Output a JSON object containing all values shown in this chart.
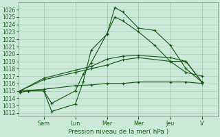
{
  "xlabel": "Pression niveau de la mer( hPa )",
  "bg_color": "#cce8d8",
  "line_color": "#1a5c1a",
  "grid_color": "#aaccb8",
  "ylim": [
    1011.5,
    1027.0
  ],
  "yticks": [
    1012,
    1013,
    1014,
    1015,
    1016,
    1017,
    1018,
    1019,
    1020,
    1021,
    1022,
    1023,
    1024,
    1025,
    1026
  ],
  "x_day_labels": [
    "Sam",
    "Lun",
    "Mar",
    "Mer",
    "Jeu",
    "V"
  ],
  "x_day_positions": [
    0.333,
    0.5,
    0.667,
    0.833,
    1.0,
    1.167
  ],
  "xlim": [
    0.2,
    1.25
  ],
  "lines": [
    {
      "x": [
        0.208,
        0.25,
        0.333,
        0.375,
        0.5,
        0.542,
        0.583,
        0.667,
        0.708,
        0.75,
        0.833,
        0.917,
        1.0,
        1.083,
        1.167
      ],
      "y": [
        1014.8,
        1015.0,
        1015.0,
        1012.2,
        1013.2,
        1016.3,
        1020.5,
        1022.7,
        1026.3,
        1025.7,
        1023.5,
        1023.2,
        1021.2,
        1018.0,
        1016.2
      ],
      "marker": "+"
    },
    {
      "x": [
        0.208,
        0.25,
        0.333,
        0.375,
        0.5,
        0.542,
        0.583,
        0.667,
        0.708,
        0.75,
        0.833,
        0.917,
        1.0,
        1.083,
        1.167
      ],
      "y": [
        1014.8,
        1015.0,
        1015.0,
        1013.3,
        1015.0,
        1017.3,
        1018.8,
        1022.8,
        1025.0,
        1024.5,
        1023.0,
        1021.2,
        1019.0,
        1017.5,
        1017.0
      ],
      "marker": "+"
    },
    {
      "x": [
        0.208,
        0.333,
        0.5,
        0.583,
        0.667,
        0.75,
        0.833,
        1.0,
        1.083,
        1.167
      ],
      "y": [
        1015.0,
        1016.7,
        1017.8,
        1018.3,
        1019.3,
        1019.7,
        1019.8,
        1019.5,
        1019.0,
        1016.2
      ],
      "marker": "+"
    },
    {
      "x": [
        0.208,
        0.333,
        0.5,
        0.583,
        0.667,
        0.75,
        0.833,
        1.0,
        1.083,
        1.167
      ],
      "y": [
        1015.0,
        1016.5,
        1017.5,
        1018.0,
        1018.5,
        1019.2,
        1019.5,
        1019.0,
        1019.0,
        1016.2
      ],
      "marker": "+"
    },
    {
      "x": [
        0.208,
        0.333,
        0.5,
        0.583,
        0.667,
        0.75,
        0.833,
        1.0,
        1.083,
        1.167
      ],
      "y": [
        1015.0,
        1015.2,
        1015.7,
        1015.8,
        1016.0,
        1016.0,
        1016.2,
        1016.2,
        1016.2,
        1016.0
      ],
      "marker": "+"
    }
  ],
  "ytick_fontsize": 5.5,
  "xtick_fontsize": 5.8,
  "xlabel_fontsize": 6.5
}
